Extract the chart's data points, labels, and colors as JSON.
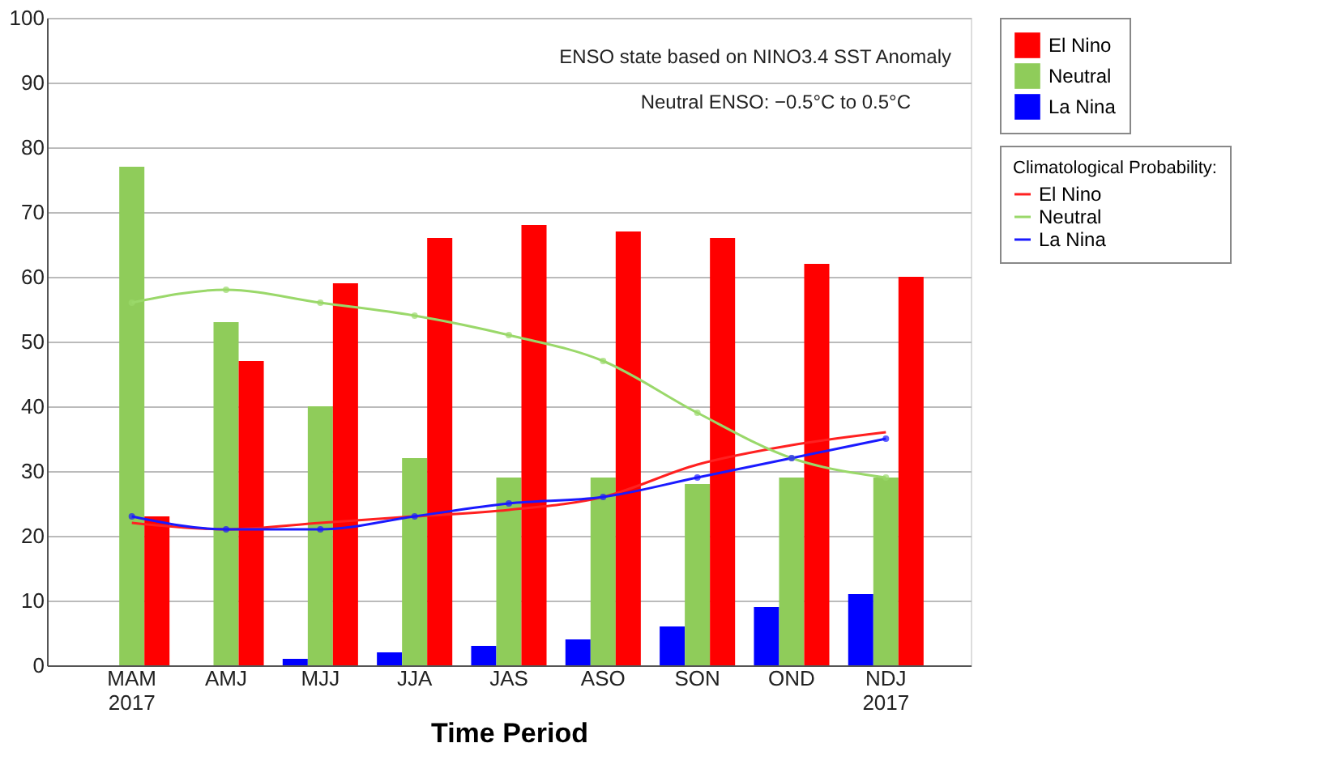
{
  "chart_data": {
    "type": "bar",
    "categories": [
      "MAM\n2017",
      "AMJ",
      "MJJ",
      "JJA",
      "JAS",
      "ASO",
      "SON",
      "OND",
      "NDJ\n2017"
    ],
    "xlabel": "Time Period",
    "legend_title": "Climatological Probability:",
    "annotations": [
      "ENSO state based on NINO3.4 SST Anomaly",
      "Neutral ENSO: −0.5°C to 0.5°C"
    ],
    "series": [
      {
        "name": "La Nina",
        "color": "#0000ff",
        "values": [
          0,
          0,
          1,
          2,
          3,
          4,
          6,
          9,
          11
        ]
      },
      {
        "name": "Neutral",
        "color": "#8fcc5a",
        "values": [
          77,
          53,
          40,
          32,
          29,
          29,
          28,
          29,
          29
        ]
      },
      {
        "name": "El Nino",
        "color": "#ff0000",
        "values": [
          23,
          47,
          59,
          66,
          68,
          67,
          66,
          62,
          60
        ]
      },
      {
        "name": "El Nino",
        "type": "line",
        "color": "#ff2020",
        "marker": "none",
        "values": [
          22,
          21,
          22,
          23,
          24,
          26,
          31,
          34,
          36
        ]
      },
      {
        "name": "Neutral",
        "type": "line",
        "color": "#9ad86a",
        "marker": "circle",
        "values": [
          56,
          58,
          56,
          54,
          51,
          47,
          39,
          32,
          29
        ]
      },
      {
        "name": "La Nina",
        "type": "line",
        "color": "#1a1aff",
        "marker": "circle",
        "values": [
          23,
          21,
          21,
          23,
          25,
          26,
          29,
          32,
          35
        ]
      }
    ],
    "ylim": [
      0,
      100
    ],
    "yticks": [
      0,
      10,
      20,
      30,
      40,
      50,
      60,
      70,
      80,
      90,
      100
    ],
    "grid": "y",
    "legend": "right"
  }
}
